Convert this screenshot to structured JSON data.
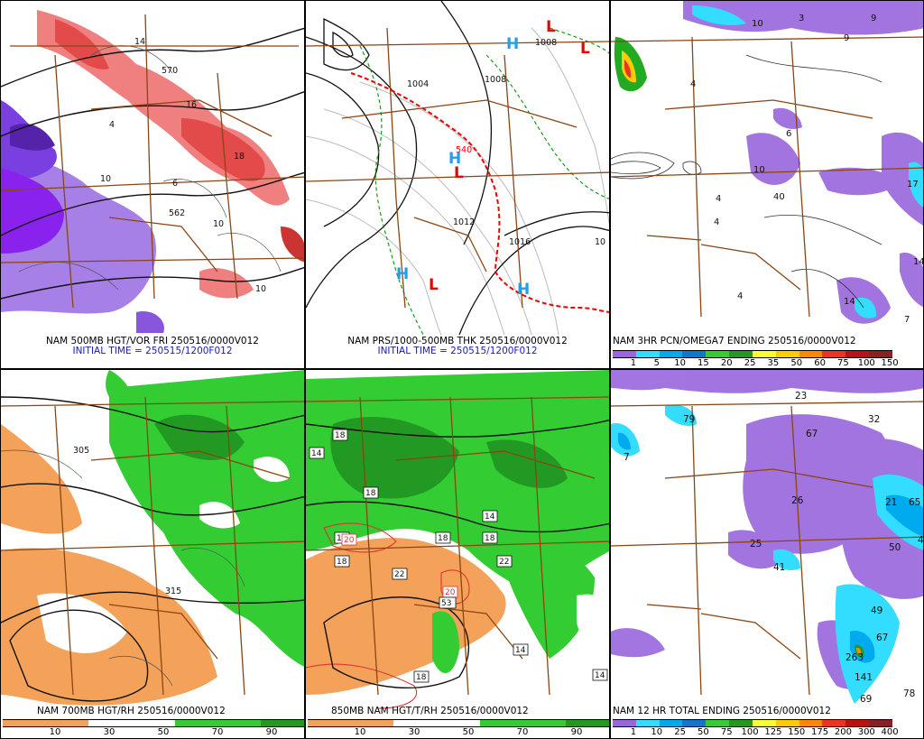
{
  "panels": {
    "p1": {
      "caption": "NAM 500MB HGT/VOR FRI 250516/0000V012",
      "initial_time": "INITIAL TIME = 250515/1200F012",
      "labels": [
        "570",
        "562",
        "10",
        "14",
        "18",
        "16",
        "4",
        "6",
        "10",
        "10"
      ]
    },
    "p2": {
      "caption": "NAM PRS/1000-500MB THK 250516/0000V012",
      "initial_time": "INITIAL TIME = 250515/1200F012",
      "labels": [
        "1008",
        "1008",
        "1004",
        "1012",
        "1016",
        "540",
        "10"
      ],
      "highs": [
        "H",
        "H",
        "H",
        "H"
      ],
      "lows": [
        "L",
        "L",
        "L",
        "L"
      ]
    },
    "p3": {
      "caption": "NAM 3HR PCN/OMEGA7 ENDING 250516/0000V012",
      "colorbar_labels": [
        "1",
        "5",
        "10",
        "15",
        "20",
        "25",
        "35",
        "50",
        "60",
        "75",
        "100",
        "150"
      ],
      "colors": [
        "#9966dd",
        "#33ddff",
        "#00aaee",
        "#1177cc",
        "#33cc33",
        "#229922",
        "#ffff33",
        "#ffcc00",
        "#ff8800",
        "#ee3322",
        "#bb1111",
        "#882222"
      ],
      "labels": [
        "10",
        "3",
        "9",
        "9",
        "4",
        "6",
        "10",
        "40",
        "4",
        "4",
        "4",
        "14",
        "17",
        "14",
        "7"
      ]
    },
    "p4": {
      "caption": "NAM 700MB HGT/RH 250516/0000V012",
      "colorbar_labels": [
        "10",
        "30",
        "50",
        "70",
        "90"
      ],
      "colors": [
        "#f4a259",
        "#f4a259",
        "#ffffff",
        "#ffffff",
        "#33cc33",
        "#33cc33",
        "#229922"
      ],
      "labels": [
        "315",
        "305"
      ]
    },
    "p5": {
      "caption": "850MB NAM HGT/T/RH 250516/0000V012",
      "colorbar_labels": [
        "10",
        "30",
        "50",
        "70",
        "90"
      ],
      "colors": [
        "#f4a259",
        "#f4a259",
        "#ffffff",
        "#ffffff",
        "#33cc33",
        "#33cc33",
        "#229922"
      ],
      "labels": [
        "14",
        "18",
        "18",
        "18",
        "18",
        "14",
        "20",
        "20",
        "22",
        "18",
        "53",
        "18",
        "14",
        "14",
        "18",
        "22"
      ]
    },
    "p6": {
      "caption": "NAM 12 HR TOTAL ENDING 250516/0000V012",
      "colorbar_labels": [
        "1",
        "10",
        "25",
        "50",
        "75",
        "100",
        "125",
        "150",
        "175",
        "200",
        "300",
        "400"
      ],
      "colors": [
        "#9966dd",
        "#33ddff",
        "#00aaee",
        "#1177cc",
        "#33cc33",
        "#229922",
        "#ffff33",
        "#ffcc00",
        "#ff8800",
        "#ee3322",
        "#bb1111",
        "#882222"
      ],
      "labels": [
        "23",
        "79",
        "67",
        "32",
        "26",
        "21",
        "65",
        "4",
        "50",
        "25",
        "41",
        "49",
        "67",
        "263",
        "141",
        "69",
        "78",
        "7"
      ]
    }
  }
}
